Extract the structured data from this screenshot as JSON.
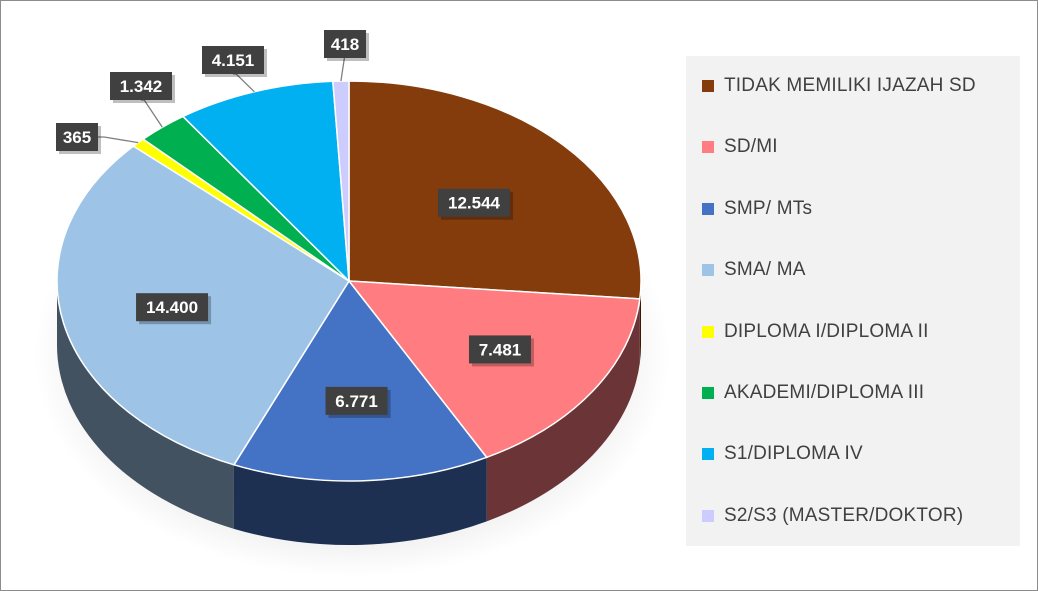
{
  "chart_data": {
    "type": "pie",
    "title": "",
    "style": "3d-pie",
    "categories": [
      "TIDAK MEMILIKI IJAZAH SD",
      "SD/MI",
      "SMP/ MTs",
      "SMA/ MA",
      "DIPLOMA I/DIPLOMA II",
      "AKADEMI/DIPLOMA III",
      "S1/DIPLOMA IV",
      "S2/S3 (MASTER/DOKTOR)"
    ],
    "values": [
      12544,
      7481,
      6771,
      14400,
      365,
      1342,
      4151,
      418
    ],
    "data_labels": [
      "12.544",
      "7.481",
      "6.771",
      "14.400",
      "365",
      "1.342",
      "4.151",
      "418"
    ],
    "colors": [
      "#843c0c",
      "#ff7c80",
      "#4472c4",
      "#9dc3e6",
      "#ffff00",
      "#00b050",
      "#00b0f0",
      "#ccccff"
    ],
    "legend_position": "right"
  }
}
